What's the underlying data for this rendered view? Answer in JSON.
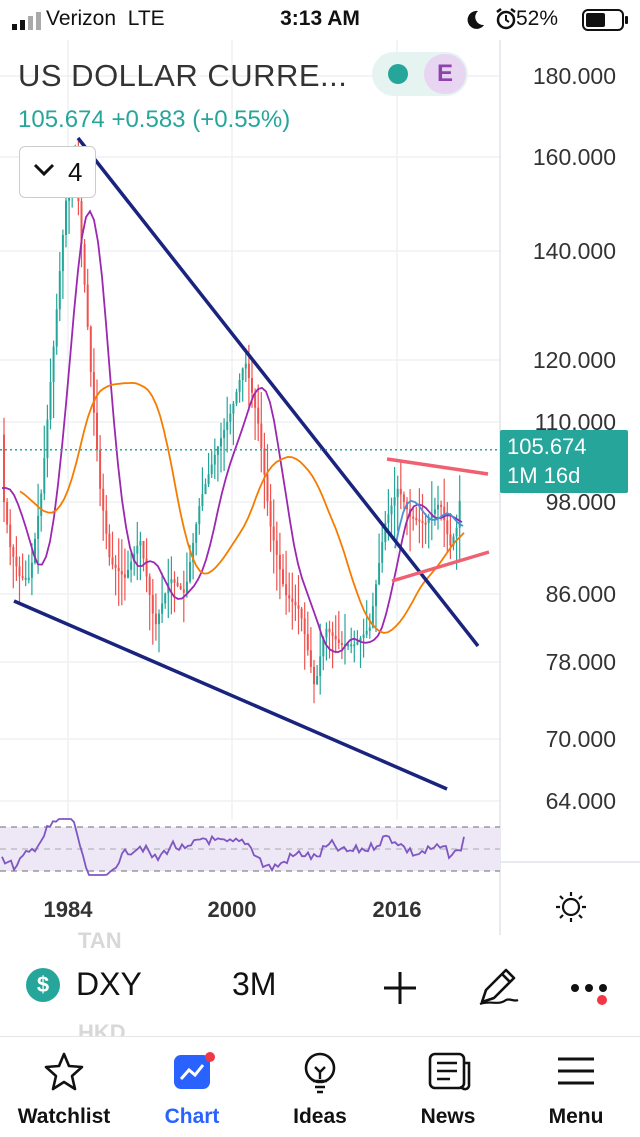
{
  "status_bar": {
    "carrier": "Verizon",
    "network": "LTE",
    "time": "3:13 AM",
    "battery": "52%"
  },
  "chart": {
    "title": "US DOLLAR CURRE...",
    "last_price": "105.674",
    "change": "+0.583",
    "change_pct": "(+0.55%)",
    "exchange_badge": "E",
    "interval_counter": "4",
    "price_tag": {
      "value": "105.674",
      "countdown": "1M 16d"
    },
    "colors": {
      "accent": "#26a69a",
      "price_up": "#26a69a",
      "price_down": "#ef5350",
      "trend_line": "#1a237e",
      "channel": "#f06070",
      "ma_long": "#f57c00",
      "ma_short": "#9c27b0",
      "ma_blue": "#4a90d9",
      "rsi": "#7e57c2"
    }
  },
  "chart_data": {
    "type": "candlestick",
    "ylim": [
      64,
      180
    ],
    "yscale": "log",
    "y_ticks": [
      "180.000",
      "160.000",
      "140.000",
      "120.000",
      "110.000",
      "98.000",
      "86.000",
      "78.000",
      "70.000",
      "64.000"
    ],
    "x_ticks": [
      "1984",
      "2000",
      "2016"
    ],
    "current_value": 105.674
  },
  "toolbar": {
    "ghost_top": "TAN",
    "ghost_bottom": "HKD",
    "symbol": "DXY",
    "interval": "3M"
  },
  "tabs": [
    {
      "label": "Watchlist",
      "icon": "star-icon"
    },
    {
      "label": "Chart",
      "icon": "chart-icon"
    },
    {
      "label": "Ideas",
      "icon": "lightbulb-icon"
    },
    {
      "label": "News",
      "icon": "news-icon"
    },
    {
      "label": "Menu",
      "icon": "menu-icon"
    }
  ]
}
